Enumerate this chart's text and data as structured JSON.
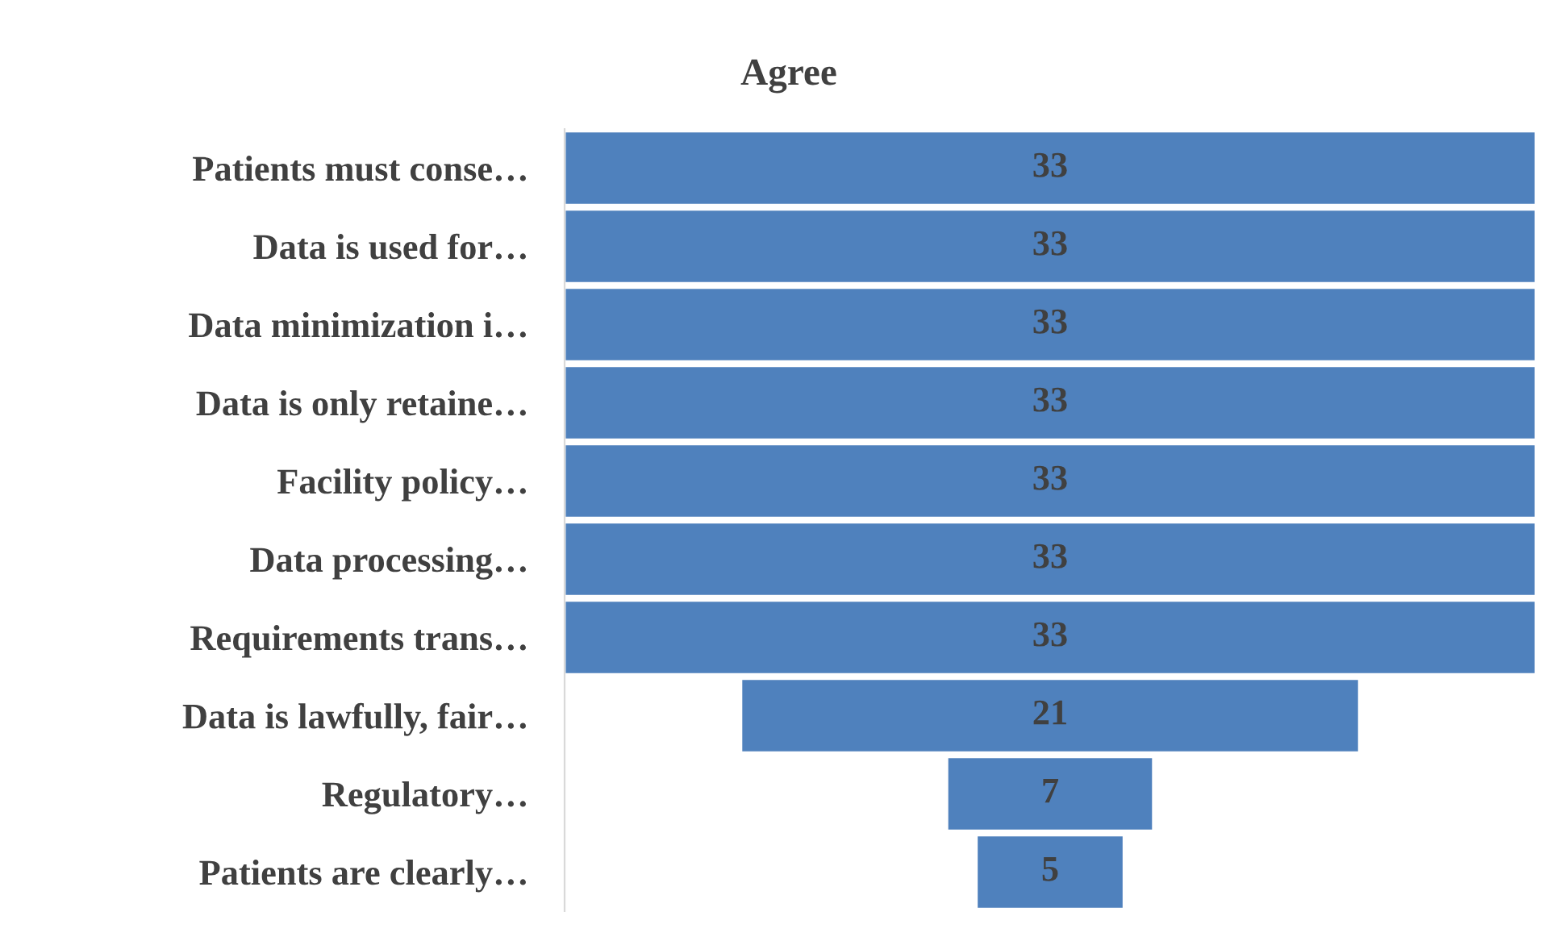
{
  "chart_data": {
    "type": "other",
    "title": "Agree",
    "categories": [
      "Patients must conse…",
      "Data is used for…",
      "Data minimization i…",
      "Data is only retaine…",
      "Facility policy…",
      "Data processing…",
      "Requirements trans…",
      "Data is lawfully, fair…",
      "Regulatory…",
      "Patients are clearly…"
    ],
    "values": [
      33,
      33,
      33,
      33,
      33,
      33,
      33,
      21,
      7,
      5
    ],
    "color": "#4f81bd",
    "data_labels": true
  }
}
